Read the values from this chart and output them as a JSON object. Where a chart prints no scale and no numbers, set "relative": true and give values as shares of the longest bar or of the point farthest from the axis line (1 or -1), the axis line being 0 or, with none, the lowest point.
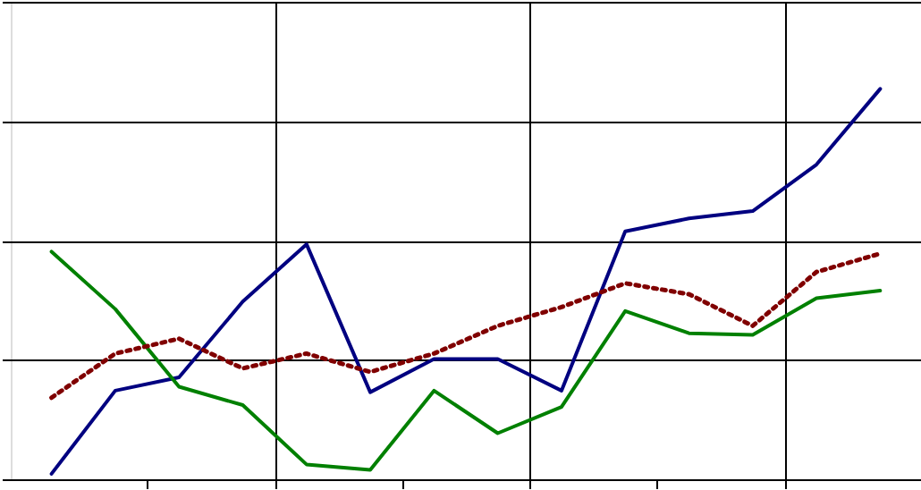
{
  "chart_data": {
    "type": "line",
    "relative": true,
    "grid": true,
    "tick_labels": false,
    "categories": [
      null,
      null,
      null,
      null,
      null,
      null,
      null,
      null,
      null,
      null,
      null,
      null,
      null,
      null
    ],
    "series": [
      {
        "color": "#000080",
        "line_style": "solid",
        "values": [
          0.014,
          0.227,
          0.261,
          0.455,
          0.602,
          0.223,
          0.308,
          0.308,
          0.227,
          0.635,
          0.668,
          0.687,
          0.806,
          1
        ]
      },
      {
        "color": "#008000",
        "line_style": "solid",
        "values": [
          0.583,
          0.436,
          0.237,
          0.19,
          0.038,
          0.024,
          0.227,
          0.118,
          0.185,
          0.431,
          0.374,
          0.37,
          0.464,
          0.483
        ]
      },
      {
        "color": "#800000",
        "line_style": "dotted",
        "values": [
          0.209,
          0.322,
          0.36,
          0.284,
          0.322,
          0.275,
          0.322,
          0.393,
          0.441,
          0.502,
          0.474,
          0.393,
          0.531,
          0.578
        ]
      }
    ]
  }
}
